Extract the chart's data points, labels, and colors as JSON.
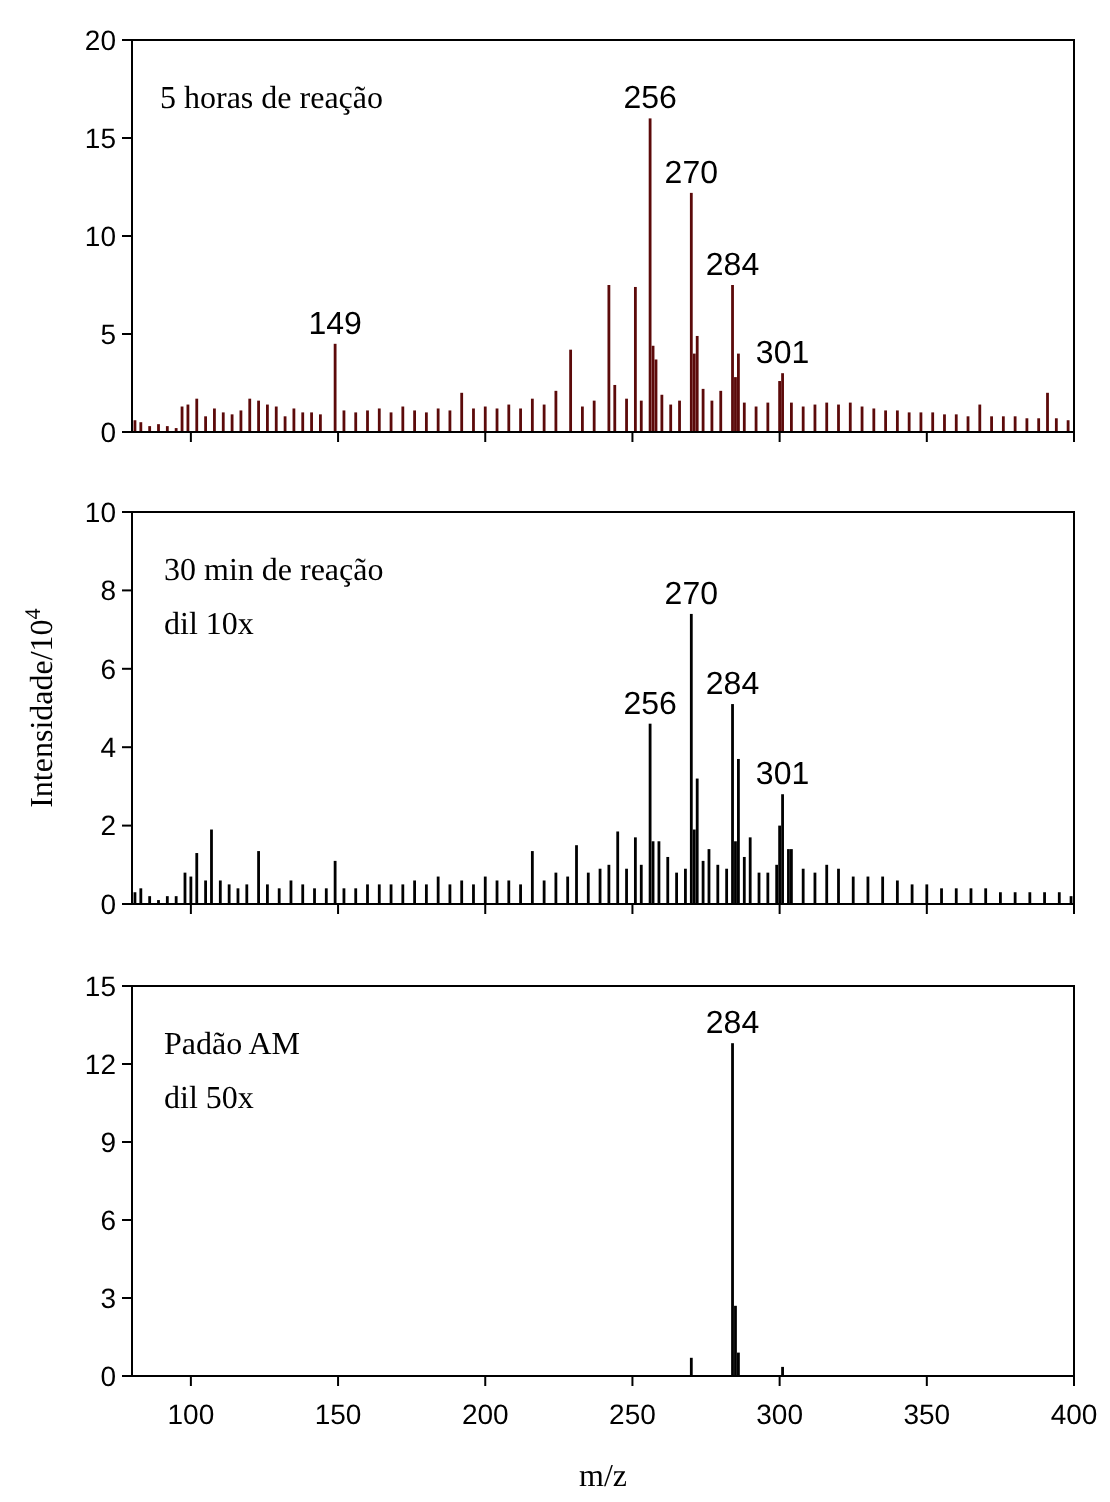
{
  "chart_data": [
    {
      "type": "bar",
      "color": "#5c0a0a",
      "xlim": [
        80,
        400
      ],
      "ylim": [
        0,
        20
      ],
      "yticks": [
        0,
        5,
        10,
        15,
        20
      ],
      "xticks": [
        {
          "value": 100,
          "label": null
        },
        {
          "value": 150,
          "label": null
        },
        {
          "value": 200,
          "label": null
        },
        {
          "value": 250,
          "label": null
        },
        {
          "value": 300,
          "label": null
        },
        {
          "value": 350,
          "label": null
        },
        {
          "value": 400,
          "label": null
        }
      ],
      "tick_labels": "y",
      "grid": false,
      "x": [
        81,
        83,
        86,
        89,
        92,
        95,
        97,
        99,
        102,
        105,
        108,
        111,
        114,
        117,
        120,
        123,
        126,
        129,
        132,
        135,
        138,
        141,
        144,
        149,
        152,
        156,
        160,
        164,
        168,
        172,
        176,
        180,
        184,
        188,
        192,
        196,
        200,
        204,
        208,
        212,
        216,
        220,
        224,
        229,
        233,
        237,
        242,
        244,
        248,
        251,
        253,
        256,
        257,
        258,
        260,
        263,
        266,
        270,
        271,
        272,
        274,
        277,
        280,
        284,
        285,
        286,
        288,
        292,
        296,
        300,
        301,
        304,
        308,
        312,
        316,
        320,
        324,
        328,
        332,
        336,
        340,
        344,
        348,
        352,
        356,
        360,
        364,
        368,
        372,
        376,
        380,
        384,
        388,
        391,
        394,
        398
      ],
      "values": [
        0.6,
        0.5,
        0.3,
        0.4,
        0.3,
        0.2,
        1.3,
        1.4,
        1.7,
        0.8,
        1.2,
        1.0,
        0.9,
        1.1,
        1.7,
        1.6,
        1.4,
        1.3,
        0.8,
        1.2,
        1.0,
        1.0,
        0.9,
        4.5,
        1.1,
        1.0,
        1.1,
        1.2,
        1.0,
        1.3,
        1.1,
        1.0,
        1.2,
        1.1,
        2.0,
        1.2,
        1.3,
        1.2,
        1.4,
        1.2,
        1.7,
        1.4,
        2.1,
        4.2,
        1.3,
        1.6,
        7.5,
        2.4,
        1.7,
        7.4,
        1.6,
        16,
        4.4,
        3.7,
        1.9,
        1.4,
        1.6,
        12.2,
        4.0,
        4.9,
        2.2,
        1.6,
        2.1,
        7.5,
        2.8,
        4.0,
        1.5,
        1.3,
        1.5,
        2.6,
        3.0,
        1.5,
        1.3,
        1.4,
        1.5,
        1.4,
        1.5,
        1.3,
        1.2,
        1.1,
        1.1,
        1.0,
        1.0,
        1.0,
        0.9,
        0.9,
        0.8,
        1.4,
        0.8,
        0.8,
        0.8,
        0.7,
        0.7,
        2.0,
        0.7,
        0.6
      ],
      "annotations": [
        "5 horas de reação",
        {
          "text": "149",
          "x": 149,
          "y": 4.5
        },
        {
          "text": "256",
          "x": 256,
          "y": 16
        },
        {
          "text": "270",
          "x": 270,
          "y": 12.2
        },
        {
          "text": "284",
          "x": 284,
          "y": 7.5
        },
        {
          "text": "301",
          "x": 301,
          "y": 3.0
        }
      ]
    },
    {
      "type": "bar",
      "color": "#000000",
      "ylabel": "Intensidade/10$^{4}$",
      "xlim": [
        80,
        400
      ],
      "ylim": [
        0,
        10
      ],
      "yticks": [
        0,
        2,
        4,
        6,
        8,
        10
      ],
      "xticks": [
        {
          "value": 100,
          "label": null
        },
        {
          "value": 150,
          "label": null
        },
        {
          "value": 200,
          "label": null
        },
        {
          "value": 250,
          "label": null
        },
        {
          "value": 300,
          "label": null
        },
        {
          "value": 350,
          "label": null
        },
        {
          "value": 400,
          "label": null
        }
      ],
      "tick_labels": "y",
      "grid": false,
      "x": [
        81,
        83,
        86,
        89,
        92,
        95,
        98,
        100,
        102,
        105,
        107,
        110,
        113,
        116,
        119,
        123,
        126,
        130,
        134,
        138,
        142,
        146,
        149,
        152,
        156,
        160,
        164,
        168,
        172,
        176,
        180,
        184,
        188,
        192,
        196,
        200,
        204,
        208,
        212,
        216,
        220,
        224,
        228,
        231,
        235,
        239,
        242,
        245,
        248,
        251,
        253,
        256,
        257,
        259,
        262,
        265,
        268,
        270,
        271,
        272,
        274,
        276,
        279,
        282,
        284,
        285,
        286,
        288,
        290,
        293,
        296,
        299,
        300,
        301,
        303,
        304,
        308,
        312,
        316,
        320,
        325,
        330,
        335,
        340,
        345,
        350,
        355,
        360,
        365,
        370,
        375,
        380,
        385,
        390,
        395,
        399
      ],
      "values": [
        0.3,
        0.4,
        0.2,
        0.1,
        0.2,
        0.2,
        0.8,
        0.7,
        1.3,
        0.6,
        1.9,
        0.6,
        0.5,
        0.4,
        0.5,
        1.35,
        0.5,
        0.4,
        0.6,
        0.5,
        0.4,
        0.4,
        1.1,
        0.4,
        0.4,
        0.5,
        0.5,
        0.5,
        0.5,
        0.6,
        0.5,
        0.7,
        0.5,
        0.6,
        0.5,
        0.7,
        0.6,
        0.6,
        0.5,
        1.35,
        0.6,
        0.8,
        0.7,
        1.5,
        0.8,
        0.9,
        1.0,
        1.85,
        0.9,
        1.7,
        1.0,
        4.6,
        1.6,
        1.6,
        1.2,
        0.8,
        0.9,
        7.4,
        1.9,
        3.2,
        1.1,
        1.4,
        1.0,
        0.9,
        5.1,
        1.6,
        3.7,
        1.2,
        1.7,
        0.8,
        0.8,
        1.0,
        2.0,
        2.8,
        1.4,
        1.4,
        0.9,
        0.8,
        1.0,
        0.9,
        0.7,
        0.7,
        0.7,
        0.6,
        0.5,
        0.5,
        0.4,
        0.4,
        0.4,
        0.4,
        0.3,
        0.3,
        0.3,
        0.3,
        0.3,
        0.2
      ],
      "annotations": [
        "30 min de reação",
        "dil 10x",
        {
          "text": "256",
          "x": 256,
          "y": 4.6
        },
        {
          "text": "270",
          "x": 270,
          "y": 7.4
        },
        {
          "text": "284",
          "x": 284,
          "y": 5.1
        },
        {
          "text": "301",
          "x": 301,
          "y": 2.8
        }
      ]
    },
    {
      "type": "bar",
      "color": "#000000",
      "xlabel": "m/z",
      "xlim": [
        80,
        400
      ],
      "ylim": [
        0,
        15
      ],
      "yticks": [
        0,
        3,
        6,
        9,
        12,
        15
      ],
      "xticks": [
        100,
        150,
        200,
        250,
        300,
        350,
        400
      ],
      "grid": false,
      "x": [
        270,
        284,
        285,
        286,
        301
      ],
      "values": [
        0.7,
        12.8,
        2.7,
        0.9,
        0.35
      ],
      "annotations": [
        "Padão AM",
        "dil 50x",
        {
          "text": "284",
          "x": 284,
          "y": 12.8
        }
      ]
    }
  ]
}
